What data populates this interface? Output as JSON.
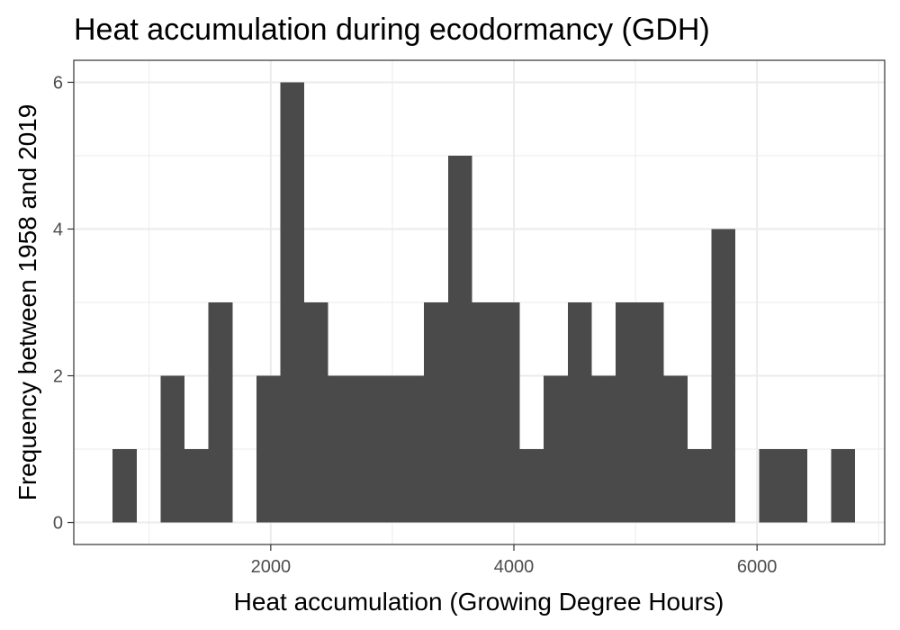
{
  "chart_data": {
    "type": "bar",
    "title": "Heat accumulation during ecodormancy (GDH)",
    "xlabel": "Heat accumulation (Growing Degree Hours)",
    "ylabel": "Frequency between 1958 and 2019",
    "xlim": [
      380,
      7050
    ],
    "ylim": [
      -0.3,
      6.3
    ],
    "x_ticks": [
      2000,
      4000,
      6000
    ],
    "x_tick_labels": [
      "2000",
      "4000",
      "6000"
    ],
    "y_ticks": [
      0,
      2,
      4,
      6
    ],
    "y_tick_labels": [
      "0",
      "2",
      "4",
      "6"
    ],
    "bin_width": 197,
    "bin_start": 700,
    "values": [
      1,
      0,
      2,
      1,
      3,
      0,
      2,
      6,
      3,
      2,
      2,
      2,
      2,
      3,
      5,
      3,
      3,
      1,
      2,
      3,
      2,
      3,
      3,
      2,
      1,
      4,
      0,
      1,
      1,
      0,
      1
    ],
    "bar_color": "#4a4a4a",
    "grid": true,
    "theme": "bw"
  }
}
